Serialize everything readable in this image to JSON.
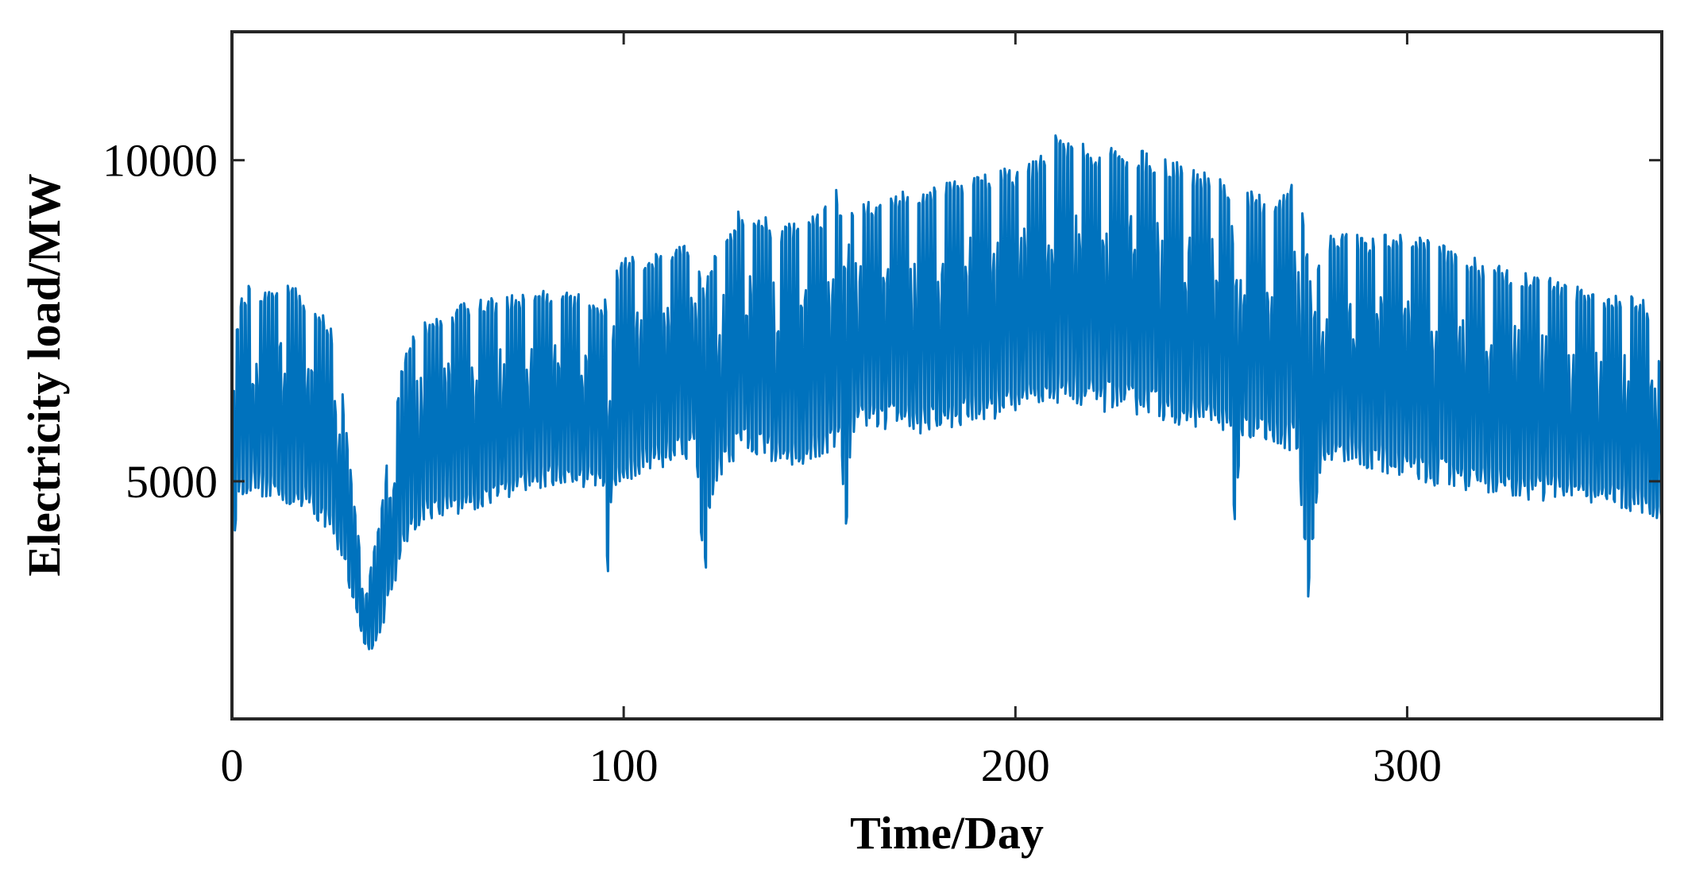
{
  "chart_data": {
    "type": "line",
    "title": "",
    "xlabel": "Time/Day",
    "ylabel": "Electricity load/MW",
    "xlim": [
      0,
      365
    ],
    "ylim": [
      1300,
      12000
    ],
    "x_ticks": [
      0,
      100,
      200,
      300
    ],
    "x_tick_labels": [
      "0",
      "100",
      "200",
      "300"
    ],
    "y_ticks": [
      5000,
      10000
    ],
    "y_tick_labels": [
      "5000",
      "10000"
    ],
    "grid": false,
    "legend": "none",
    "series": [
      {
        "color": "#0072BD",
        "daily_envelope": {
          "day": [
            0,
            1,
            2,
            5,
            10,
            15,
            20,
            25,
            28,
            31,
            33,
            35,
            38,
            41,
            44,
            47,
            50,
            60,
            70,
            80,
            90,
            95,
            96,
            97,
            100,
            110,
            118,
            121,
            122,
            124,
            130,
            140,
            150,
            155,
            157,
            158,
            160,
            170,
            180,
            190,
            200,
            205,
            210,
            215,
            220,
            230,
            240,
            250,
            255,
            256,
            258,
            265,
            272,
            275,
            276,
            278,
            285,
            290,
            300,
            310,
            320,
            330,
            340,
            350,
            360,
            365
          ],
          "max": [
            6000,
            7200,
            7900,
            8100,
            8000,
            8100,
            7800,
            7500,
            6500,
            4800,
            3800,
            3500,
            4500,
            6000,
            7000,
            7400,
            7500,
            7800,
            7900,
            8000,
            7900,
            7800,
            8000,
            8300,
            8500,
            8600,
            8800,
            8000,
            8500,
            8700,
            9300,
            9000,
            9200,
            9600,
            8000,
            9400,
            9300,
            9500,
            9600,
            9800,
            9900,
            10000,
            10400,
            10300,
            10200,
            10200,
            10000,
            9800,
            9600,
            8000,
            9600,
            9400,
            9700,
            8500,
            7500,
            8800,
            8900,
            8800,
            8900,
            8700,
            8400,
            8300,
            8100,
            7900,
            7900,
            6800
          ],
          "min": [
            3700,
            4400,
            4700,
            4800,
            4700,
            4600,
            4500,
            4200,
            3800,
            3000,
            2600,
            2300,
            2600,
            3300,
            3900,
            4200,
            4400,
            4500,
            4700,
            4900,
            4900,
            4800,
            3200,
            4900,
            5000,
            5200,
            5400,
            3100,
            4500,
            5000,
            5400,
            5200,
            5300,
            5500,
            4100,
            5700,
            5800,
            5800,
            5700,
            5900,
            6000,
            6100,
            6200,
            6200,
            6100,
            6000,
            5900,
            5800,
            5600,
            4100,
            5600,
            5500,
            5400,
            3000,
            4000,
            5200,
            5300,
            5200,
            5000,
            4900,
            4800,
            4700,
            4700,
            4600,
            4500,
            4300
          ]
        }
      }
    ]
  }
}
